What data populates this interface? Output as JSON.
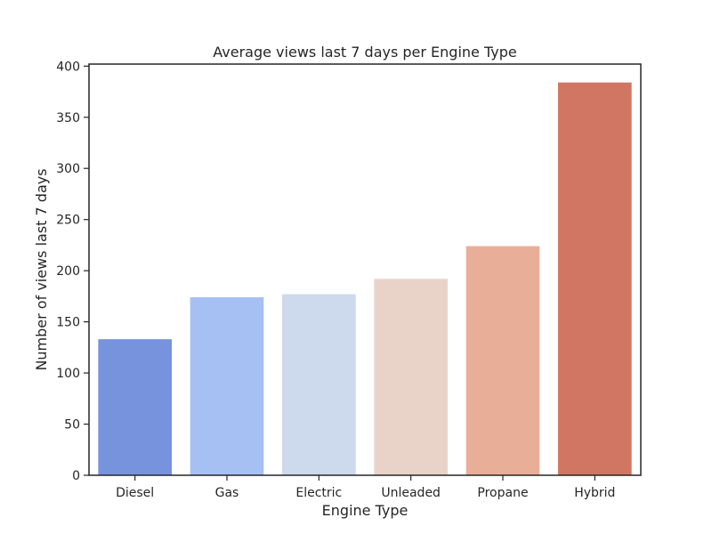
{
  "chart_data": {
    "type": "bar",
    "title": "Average views last 7 days per Engine Type",
    "xlabel": "Engine Type",
    "ylabel": "Number of views last 7 days",
    "categories": [
      "Diesel",
      "Gas",
      "Electric",
      "Unleaded",
      "Propane",
      "Hybrid"
    ],
    "values": [
      133,
      174,
      177,
      192,
      224,
      384
    ],
    "colors": [
      "#7793de",
      "#a6c0f3",
      "#cdd9ec",
      "#e9d3c9",
      "#e9ae98",
      "#d07663"
    ],
    "ylim": [
      0,
      402
    ],
    "yticks": [
      0,
      50,
      100,
      150,
      200,
      250,
      300,
      350,
      400
    ],
    "grid": false,
    "legend": "none"
  }
}
